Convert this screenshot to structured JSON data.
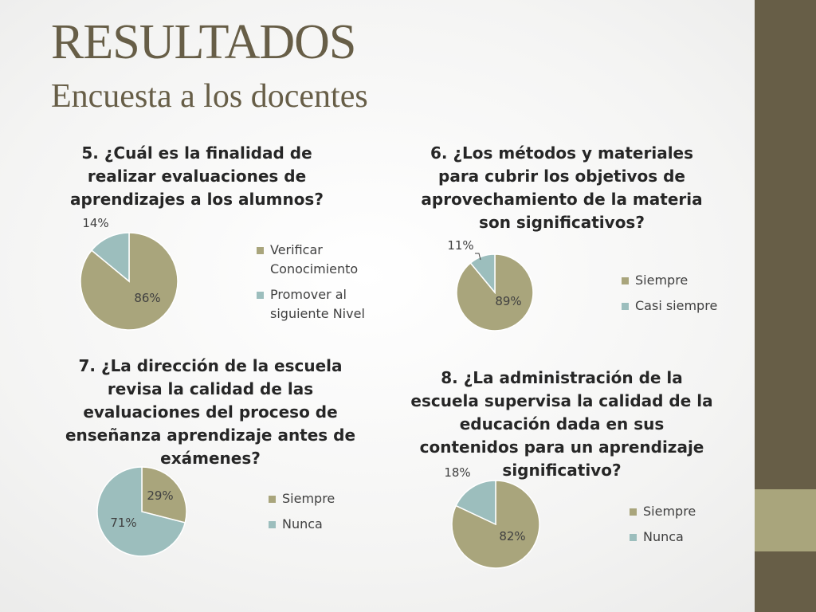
{
  "slide": {
    "title": "RESULTADOS",
    "subtitle": "Encuesta a los docentes"
  },
  "colors": {
    "accent_dark": "#675e47",
    "accent_light": "#a9a57c",
    "teal": "#9cbebd",
    "slice_border": "#ffffff"
  },
  "chart_data": [
    {
      "type": "pie",
      "title": "5. ¿Cuál es la finalidad de realizar evaluaciones de aprendizajes a los alumnos?",
      "categories": [
        "Verificar Conocimiento",
        "Promover al siguiente Nivel"
      ],
      "values": [
        86,
        14
      ],
      "labels": [
        "86%",
        "14%"
      ],
      "colors": [
        "#a9a57c",
        "#9cbebd"
      ],
      "legend_position": "right"
    },
    {
      "type": "pie",
      "title": "6. ¿Los métodos y materiales para cubrir los objetivos de aprovechamiento de la materia son significativos?",
      "categories": [
        "Siempre",
        "Casi siempre"
      ],
      "values": [
        89,
        11
      ],
      "labels": [
        "89%",
        "11%"
      ],
      "colors": [
        "#a9a57c",
        "#9cbebd"
      ],
      "legend_position": "right"
    },
    {
      "type": "pie",
      "title": "7. ¿La dirección de la escuela revisa la calidad de las evaluaciones del proceso de enseñanza aprendizaje antes de exámenes?",
      "categories": [
        "Siempre",
        "Nunca"
      ],
      "values": [
        29,
        71
      ],
      "labels": [
        "29%",
        "71%"
      ],
      "colors": [
        "#a9a57c",
        "#9cbebd"
      ],
      "legend_position": "right"
    },
    {
      "type": "pie",
      "title": "8. ¿La administración de la escuela supervisa la calidad de la educación dada en sus contenidos para un aprendizaje significativo?",
      "categories": [
        "Siempre",
        "Nunca"
      ],
      "values": [
        82,
        18
      ],
      "labels": [
        "82%",
        "18%"
      ],
      "colors": [
        "#a9a57c",
        "#9cbebd"
      ],
      "legend_position": "right"
    }
  ]
}
